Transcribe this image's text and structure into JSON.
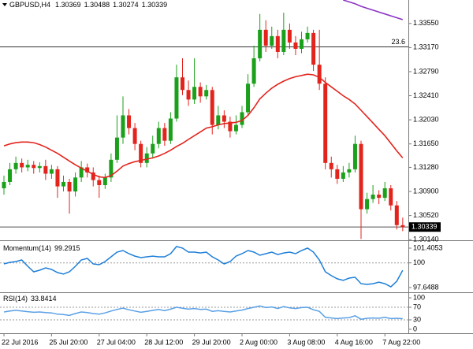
{
  "chart_data": [
    {
      "type": "candlestick",
      "title": "GBPUSD,H4",
      "categories": [
        "22 Jul 2016",
        null,
        null,
        null,
        null,
        null,
        null,
        null,
        "25 Jul 20:00",
        null,
        null,
        null,
        null,
        null,
        null,
        null,
        "27 Jul 04:00",
        null,
        null,
        null,
        null,
        null,
        null,
        null,
        "28 Jul 12:00",
        null,
        null,
        null,
        null,
        null,
        null,
        null,
        "29 Jul 20:00",
        null,
        null,
        null,
        null,
        null,
        null,
        null,
        "2 Aug 00:00",
        null,
        null,
        null,
        null,
        null,
        null,
        null,
        "3 Aug 08:00",
        null,
        null,
        null,
        null,
        null,
        null,
        null,
        "4 Aug 16:00",
        null,
        null,
        null,
        null,
        null,
        null,
        null,
        "7 Aug 22:00",
        null,
        null,
        null
      ],
      "open": [
        1.3095,
        1.3105,
        1.3125,
        1.3135,
        1.3128,
        1.3132,
        1.3127,
        1.313,
        1.3118,
        1.3125,
        1.3098,
        1.3105,
        1.309,
        1.3112,
        1.3128,
        1.312,
        1.3108,
        1.31,
        1.3112,
        1.314,
        1.3175,
        1.321,
        1.319,
        1.3165,
        1.3135,
        1.315,
        1.3165,
        1.319,
        1.317,
        1.3205,
        1.327,
        1.325,
        1.3235,
        1.3255,
        1.324,
        1.325,
        1.3195,
        1.321,
        1.32,
        1.3185,
        1.3195,
        1.3215,
        1.326,
        1.33,
        1.3345,
        1.332,
        1.3335,
        1.331,
        1.3345,
        1.3325,
        1.3315,
        1.333,
        1.334,
        1.329,
        1.326,
        1.3135,
        1.3125,
        1.311,
        1.312,
        1.3125,
        1.3165,
        1.3062,
        1.3078,
        1.3085,
        1.308,
        1.3095,
        1.3068,
        1.30369
      ],
      "high": [
        1.3115,
        1.3135,
        1.3145,
        1.3142,
        1.314,
        1.3138,
        1.3136,
        1.314,
        1.3132,
        1.313,
        1.3115,
        1.311,
        1.312,
        1.3138,
        1.3134,
        1.3128,
        1.3115,
        1.3118,
        1.315,
        1.321,
        1.324,
        1.322,
        1.3198,
        1.317,
        1.316,
        1.3178,
        1.32,
        1.3198,
        1.3215,
        1.329,
        1.33,
        1.3265,
        1.33,
        1.3262,
        1.3258,
        1.3255,
        1.3225,
        1.3218,
        1.3208,
        1.321,
        1.3225,
        1.3275,
        1.332,
        1.337,
        1.336,
        1.335,
        1.3345,
        1.3372,
        1.3355,
        1.3335,
        1.3342,
        1.335,
        1.3345,
        1.3345,
        1.327,
        1.3145,
        1.3132,
        1.313,
        1.3135,
        1.3178,
        1.317,
        1.3088,
        1.31,
        1.3092,
        1.3105,
        1.31,
        1.3075,
        1.30488
      ],
      "low": [
        1.3085,
        1.31,
        1.3118,
        1.312,
        1.3122,
        1.3118,
        1.312,
        1.3108,
        1.311,
        1.308,
        1.309,
        1.3055,
        1.3082,
        1.3105,
        1.3112,
        1.3098,
        1.308,
        1.3094,
        1.3105,
        1.3135,
        1.3165,
        1.318,
        1.3155,
        1.3128,
        1.3128,
        1.3142,
        1.3158,
        1.3162,
        1.3165,
        1.32,
        1.3242,
        1.3225,
        1.3228,
        1.323,
        1.3235,
        1.318,
        1.3188,
        1.319,
        1.3175,
        1.318,
        1.319,
        1.321,
        1.3255,
        1.3295,
        1.331,
        1.3315,
        1.33,
        1.3305,
        1.3315,
        1.3305,
        1.3308,
        1.3325,
        1.328,
        1.325,
        1.3125,
        1.3112,
        1.3102,
        1.3105,
        1.3112,
        1.312,
        1.3015,
        1.3055,
        1.3072,
        1.307,
        1.3075,
        1.306,
        1.303,
        1.30274
      ],
      "close": [
        1.3105,
        1.3125,
        1.3135,
        1.3128,
        1.3132,
        1.3127,
        1.313,
        1.3118,
        1.3125,
        1.3098,
        1.3105,
        1.309,
        1.3112,
        1.3128,
        1.312,
        1.3108,
        1.31,
        1.3112,
        1.314,
        1.3175,
        1.321,
        1.319,
        1.3165,
        1.3135,
        1.315,
        1.3165,
        1.319,
        1.317,
        1.3205,
        1.327,
        1.325,
        1.3235,
        1.3255,
        1.324,
        1.325,
        1.3195,
        1.321,
        1.32,
        1.3185,
        1.3195,
        1.3215,
        1.326,
        1.33,
        1.3345,
        1.332,
        1.3335,
        1.331,
        1.3345,
        1.3325,
        1.3315,
        1.333,
        1.334,
        1.329,
        1.326,
        1.3135,
        1.3125,
        1.311,
        1.312,
        1.3125,
        1.3165,
        1.3062,
        1.3078,
        1.3085,
        1.308,
        1.3095,
        1.3068,
        1.30369,
        1.30339
      ],
      "up_color": "#1aa01a",
      "down_color": "#e3241d",
      "overlays": [
        {
          "color": "#e3241d",
          "values": [
            1.3162,
            1.3165,
            1.3167,
            1.3168,
            1.3168,
            1.3167,
            1.3164,
            1.316,
            1.3155,
            1.315,
            1.3144,
            1.3138,
            1.3132,
            1.3127,
            1.3122,
            1.3117,
            1.3113,
            1.3112,
            1.3115,
            1.3122,
            1.313,
            1.3134,
            1.3137,
            1.3139,
            1.3141,
            1.3143,
            1.3146,
            1.315,
            1.3155,
            1.3161,
            1.3166,
            1.3172,
            1.3178,
            1.3184,
            1.319,
            1.3192,
            1.3195,
            1.3197,
            1.3198,
            1.3199,
            1.3202,
            1.321,
            1.3222,
            1.3236,
            1.3245,
            1.3253,
            1.3259,
            1.3264,
            1.3268,
            1.3271,
            1.3273,
            1.3275,
            1.3274,
            1.327,
            1.3262,
            1.3255,
            1.3248,
            1.3241,
            1.3235,
            1.3228,
            1.3218,
            1.3208,
            1.3198,
            1.3188,
            1.3178,
            1.3166,
            1.3154,
            1.3143
          ]
        },
        {
          "color": "#8a35c4",
          "values": [
            null,
            null,
            null,
            null,
            null,
            null,
            null,
            null,
            null,
            null,
            null,
            null,
            null,
            null,
            null,
            null,
            null,
            null,
            null,
            null,
            null,
            null,
            null,
            null,
            null,
            null,
            null,
            null,
            null,
            null,
            null,
            null,
            null,
            null,
            null,
            null,
            null,
            null,
            null,
            null,
            null,
            null,
            null,
            null,
            null,
            null,
            null,
            null,
            null,
            null,
            null,
            null,
            null,
            null,
            null,
            null,
            null,
            1.3392,
            1.3389,
            1.3386,
            1.3382,
            1.3379,
            1.3376,
            1.3373,
            1.337,
            1.3367,
            1.3364,
            1.3361
          ]
        }
      ],
      "fib_level": 23.6,
      "fib_price": 1.3318,
      "ylim": [
        1.3013,
        1.3392
      ],
      "yticks": [
        {
          "value": 1.3355,
          "label": "1.33550"
        },
        {
          "value": 1.3317,
          "label": "1.33170"
        },
        {
          "value": 1.3279,
          "label": "1.32790"
        },
        {
          "value": 1.3241,
          "label": "1.32410"
        },
        {
          "value": 1.3203,
          "label": "1.32030"
        },
        {
          "value": 1.3165,
          "label": "1.31650"
        },
        {
          "value": 1.3128,
          "label": "1.31280"
        },
        {
          "value": 1.309,
          "label": "1.30900"
        },
        {
          "value": 1.3052,
          "label": "1.30520"
        },
        {
          "value": 1.3014,
          "label": "1.30140"
        }
      ]
    },
    {
      "type": "line",
      "title": "Momentum(14)",
      "color": "#1e7fd8",
      "values": [
        99.9,
        100.05,
        100.13,
        100.28,
        99.68,
        99.15,
        99.3,
        99.53,
        99.38,
        99.08,
        98.93,
        99.15,
        99.68,
        100.28,
        100.43,
        99.9,
        99.83,
        100.13,
        100.58,
        101.03,
        101.18,
        100.88,
        100.65,
        100.5,
        100.58,
        100.65,
        100.58,
        100.58,
        100.88,
        101.56,
        101.41,
        101.03,
        101.03,
        100.95,
        101.03,
        100.58,
        100.28,
        99.9,
        100.13,
        100.65,
        100.88,
        101.18,
        101.03,
        100.73,
        100.88,
        101.03,
        100.8,
        100.95,
        101.03,
        100.88,
        101.18,
        101.41,
        101.03,
        100.28,
        99.15,
        98.78,
        98.48,
        98.33,
        98.55,
        98.63,
        98.02,
        97.95,
        98.02,
        98.17,
        98.02,
        97.72,
        98.25,
        99.2915
      ],
      "ylim": [
        97.123,
        101.931
      ],
      "yticks": [
        101.4053,
        100,
        97.6488
      ],
      "levels": [
        100
      ]
    },
    {
      "type": "line",
      "title": "RSI(14)",
      "color": "#5aa0e6",
      "values": [
        55,
        58,
        60,
        58,
        56,
        54,
        55,
        53,
        52,
        48,
        47,
        44,
        50,
        55,
        53,
        50,
        48,
        52,
        58,
        63,
        67,
        62,
        58,
        54,
        57,
        60,
        63,
        59,
        64,
        70,
        67,
        64,
        66,
        63,
        64,
        57,
        59,
        57,
        55,
        58,
        61,
        66,
        70,
        74,
        69,
        71,
        66,
        72,
        68,
        66,
        69,
        70,
        62,
        57,
        38,
        36,
        34,
        36,
        37,
        43,
        32,
        35,
        36,
        35,
        38,
        34,
        35,
        33.8414
      ],
      "ylim": [
        -10,
        115
      ],
      "yticks": [
        100,
        70,
        30,
        0
      ],
      "levels": [
        70,
        30
      ]
    }
  ]
}
